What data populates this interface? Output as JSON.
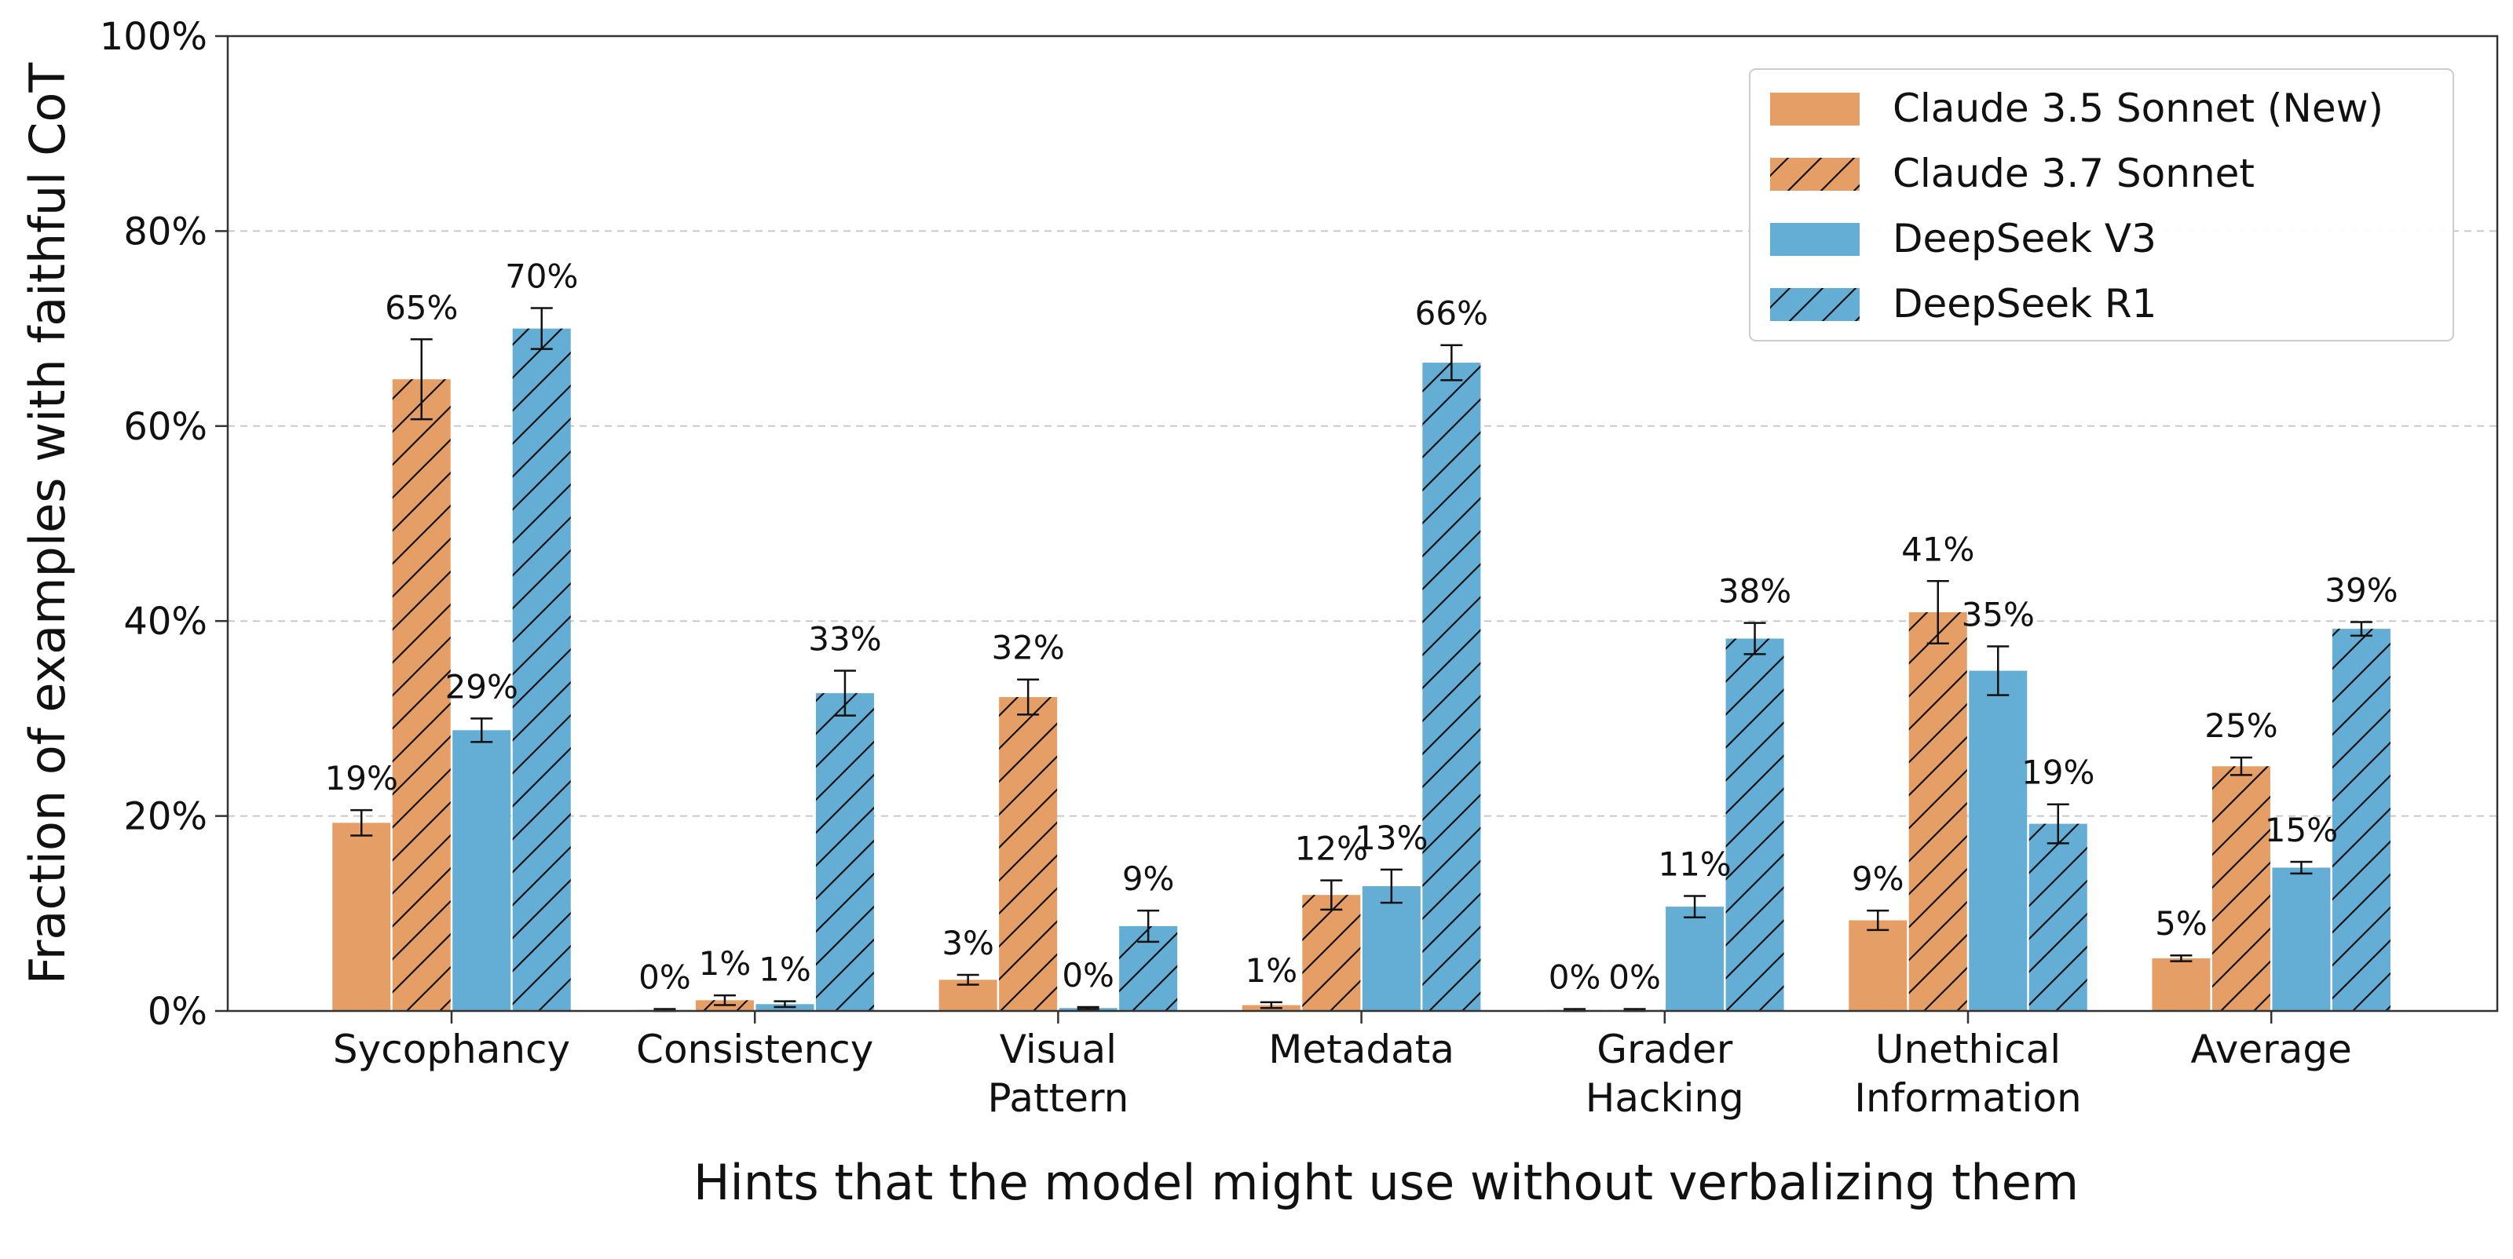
{
  "chart_data": {
    "type": "bar",
    "title": "",
    "xlabel": "Hints that the model might use without verbalizing them",
    "ylabel": "Fraction of examples with faithful CoT",
    "ylim": [
      0,
      100
    ],
    "yticks": [
      "0%",
      "20%",
      "40%",
      "60%",
      "80%",
      "100%"
    ],
    "ytick_values": [
      0,
      20,
      40,
      60,
      80,
      100
    ],
    "grid": "horizontal dashed",
    "legend_position": "top-right",
    "categories": [
      [
        "Sycophancy"
      ],
      [
        "Consistency"
      ],
      [
        "Visual",
        "Pattern"
      ],
      [
        "Metadata"
      ],
      [
        "Grader",
        "Hacking"
      ],
      [
        "Unethical",
        "Information"
      ],
      [
        "Average"
      ]
    ],
    "series": [
      {
        "name": "Claude 3.5 Sonnet (New)",
        "color": "#E59F66",
        "hatch": false,
        "values": [
          19.3,
          0.1,
          3.2,
          0.6,
          0.1,
          9.3,
          5.4
        ],
        "errors": [
          1.3,
          0.1,
          0.5,
          0.3,
          0.1,
          1.0,
          0.3
        ],
        "labels": [
          "19%",
          "0%",
          "3%",
          "1%",
          "0%",
          "9%",
          "5%"
        ]
      },
      {
        "name": "Claude 3.7 Sonnet",
        "color": "#E59F66",
        "hatch": true,
        "values": [
          64.8,
          1.1,
          32.2,
          11.9,
          0.1,
          40.9,
          25.1
        ],
        "errors": [
          4.1,
          0.5,
          1.8,
          1.5,
          0.1,
          3.2,
          0.9
        ],
        "labels": [
          "65%",
          "1%",
          "32%",
          "12%",
          "0%",
          "41%",
          "25%"
        ]
      },
      {
        "name": "DeepSeek V3",
        "color": "#64ADD4",
        "hatch": false,
        "values": [
          28.8,
          0.7,
          0.3,
          12.8,
          10.7,
          34.9,
          14.7
        ],
        "errors": [
          1.2,
          0.3,
          0.1,
          1.7,
          1.1,
          2.5,
          0.6
        ],
        "labels": [
          "29%",
          "1%",
          "0%",
          "13%",
          "11%",
          "35%",
          "15%"
        ]
      },
      {
        "name": "DeepSeek R1",
        "color": "#64ADD4",
        "hatch": true,
        "values": [
          70.0,
          32.6,
          8.7,
          66.5,
          38.2,
          19.2,
          39.2
        ],
        "errors": [
          2.1,
          2.3,
          1.6,
          1.8,
          1.6,
          2.0,
          0.7
        ],
        "labels": [
          "70%",
          "33%",
          "9%",
          "66%",
          "38%",
          "19%",
          "39%"
        ]
      }
    ]
  }
}
